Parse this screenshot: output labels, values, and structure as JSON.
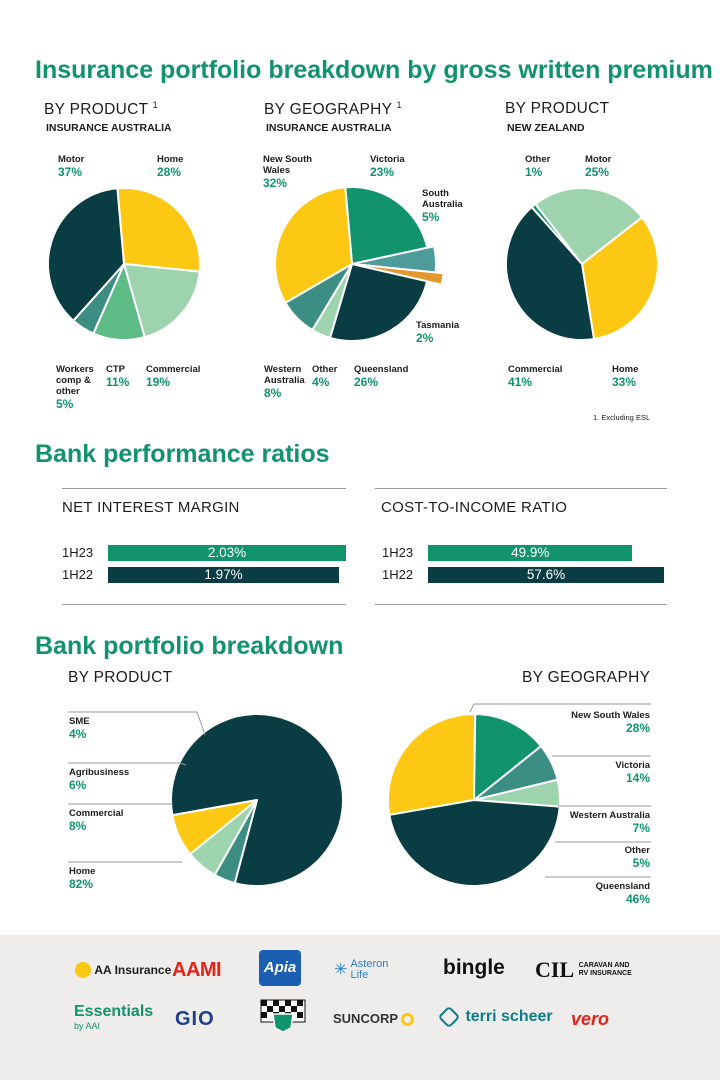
{
  "colors": {
    "green": "#11946c",
    "dark": "#0a3d43",
    "yellow": "#fcc813",
    "light_green": "#9dd3ad",
    "mid_green": "#5fbb86",
    "teal": "#3c8d82",
    "teal2": "#4e9c9a",
    "orange": "#e4972c"
  },
  "section1": {
    "title": "Insurance portfolio breakdown by gross written premium",
    "footnote": "1. Excluding ESL"
  },
  "section2": {
    "title": "Bank performance ratios",
    "nim_title": "NET INTEREST MARGIN",
    "cti_title": "COST-TO-INCOME RATIO"
  },
  "section3": {
    "title": "Bank portfolio breakdown"
  },
  "footer": {
    "logos": [
      "AA Insurance",
      "AAMI",
      "Apia",
      "Asteron Life",
      "bingle",
      "CIL",
      "CARAVAN AND",
      "RV INSURANCE",
      "Essentials",
      "by AAI",
      "GIO",
      "SUNCORP",
      "terri scheer",
      "vero"
    ]
  },
  "chart_data": [
    {
      "type": "pie",
      "title": "BY PRODUCT",
      "footnote_marker": "1",
      "subtitle": "INSURANCE AUSTRALIA",
      "unit": "%",
      "slices": [
        {
          "label": "Home",
          "value": 28,
          "color": "#fcc813"
        },
        {
          "label": "Commercial",
          "value": 19,
          "color": "#9dd3ad"
        },
        {
          "label": "CTP",
          "value": 11,
          "color": "#5fbb86"
        },
        {
          "label": "Workers comp & other",
          "value": 5,
          "color": "#3c8d82"
        },
        {
          "label": "Motor",
          "value": 37,
          "color": "#0a3d43"
        }
      ]
    },
    {
      "type": "pie",
      "title": "BY GEOGRAPHY",
      "footnote_marker": "1",
      "subtitle": "INSURANCE AUSTRALIA",
      "unit": "%",
      "slices": [
        {
          "label": "Victoria",
          "value": 23,
          "color": "#11946c"
        },
        {
          "label": "South Australia",
          "value": 5,
          "color": "#4e9c9a"
        },
        {
          "label": "Tasmania",
          "value": 2,
          "color": "#e4972c"
        },
        {
          "label": "Queensland",
          "value": 26,
          "color": "#0a3d43"
        },
        {
          "label": "Other",
          "value": 4,
          "color": "#9dd3ad"
        },
        {
          "label": "Western Australia",
          "value": 8,
          "color": "#3c8d82"
        },
        {
          "label": "New South Wales",
          "value": 32,
          "color": "#fcc813"
        }
      ]
    },
    {
      "type": "pie",
      "title": "BY PRODUCT",
      "subtitle": "NEW ZEALAND",
      "unit": "%",
      "slices": [
        {
          "label": "Other",
          "value": 1,
          "color": "#11946c"
        },
        {
          "label": "Motor",
          "value": 25,
          "color": "#9dd3ad"
        },
        {
          "label": "Home",
          "value": 33,
          "color": "#fcc813"
        },
        {
          "label": "Commercial",
          "value": 41,
          "color": "#0a3d43"
        }
      ]
    },
    {
      "type": "bar",
      "title": "NET INTEREST MARGIN",
      "orientation": "horizontal",
      "categories": [
        "1H23",
        "1H22"
      ],
      "values": [
        2.03,
        1.97
      ],
      "value_labels": [
        "2.03%",
        "1.97%"
      ],
      "colors": [
        "#11946c",
        "#0a3d43"
      ],
      "xlim": [
        0,
        2.03
      ]
    },
    {
      "type": "bar",
      "title": "COST-TO-INCOME RATIO",
      "orientation": "horizontal",
      "categories": [
        "1H23",
        "1H22"
      ],
      "values": [
        49.9,
        57.6
      ],
      "value_labels": [
        "49.9%",
        "57.6%"
      ],
      "colors": [
        "#11946c",
        "#0a3d43"
      ],
      "xlim": [
        0,
        57.6
      ]
    },
    {
      "type": "pie",
      "title": "BY PRODUCT",
      "unit": "%",
      "slices": [
        {
          "label": "Home",
          "value": 82,
          "color": "#0a3d43"
        },
        {
          "label": "Commercial",
          "value": 8,
          "color": "#fcc813"
        },
        {
          "label": "Agribusiness",
          "value": 6,
          "color": "#9dd3ad"
        },
        {
          "label": "SME",
          "value": 4,
          "color": "#3c8d82"
        }
      ]
    },
    {
      "type": "pie",
      "title": "BY GEOGRAPHY",
      "unit": "%",
      "slices": [
        {
          "label": "New South Wales",
          "value": 28,
          "color": "#fcc813"
        },
        {
          "label": "Victoria",
          "value": 14,
          "color": "#11946c"
        },
        {
          "label": "Western Australia",
          "value": 7,
          "color": "#3c8d82"
        },
        {
          "label": "Other",
          "value": 5,
          "color": "#9dd3ad"
        },
        {
          "label": "Queensland",
          "value": 46,
          "color": "#0a3d43"
        }
      ]
    }
  ]
}
